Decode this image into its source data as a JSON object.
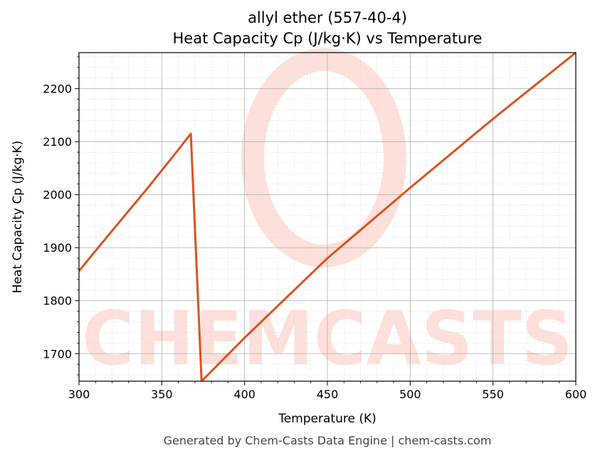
{
  "chart_data": {
    "type": "line",
    "title": "allyl ether (557-40-4)",
    "subtitle": "Heat Capacity Cp (J/kg·K) vs Temperature",
    "xlabel": "Temperature (K)",
    "ylabel": "Heat Capacity Cp (J/kg·K)",
    "xlim": [
      300,
      600
    ],
    "ylim": [
      1648,
      2268
    ],
    "x_ticks": [
      300,
      350,
      400,
      450,
      500,
      550,
      600
    ],
    "y_ticks": [
      1700,
      1800,
      1900,
      2000,
      2100,
      2200
    ],
    "grid": true,
    "series": [
      {
        "color": "#d9541e",
        "x": [
          300,
          320,
          340,
          360,
          367.5,
          374,
          400,
          450,
          500,
          550,
          600
        ],
        "y": [
          1856,
          1932,
          2007,
          2085,
          2115,
          1648,
          1730,
          1880,
          2013,
          2143,
          2268
        ]
      }
    ]
  },
  "watermark": {
    "text": "CHEMCASTS",
    "color": "#fde0da"
  },
  "footer": "Generated by Chem-Casts Data Engine | chem-casts.com"
}
